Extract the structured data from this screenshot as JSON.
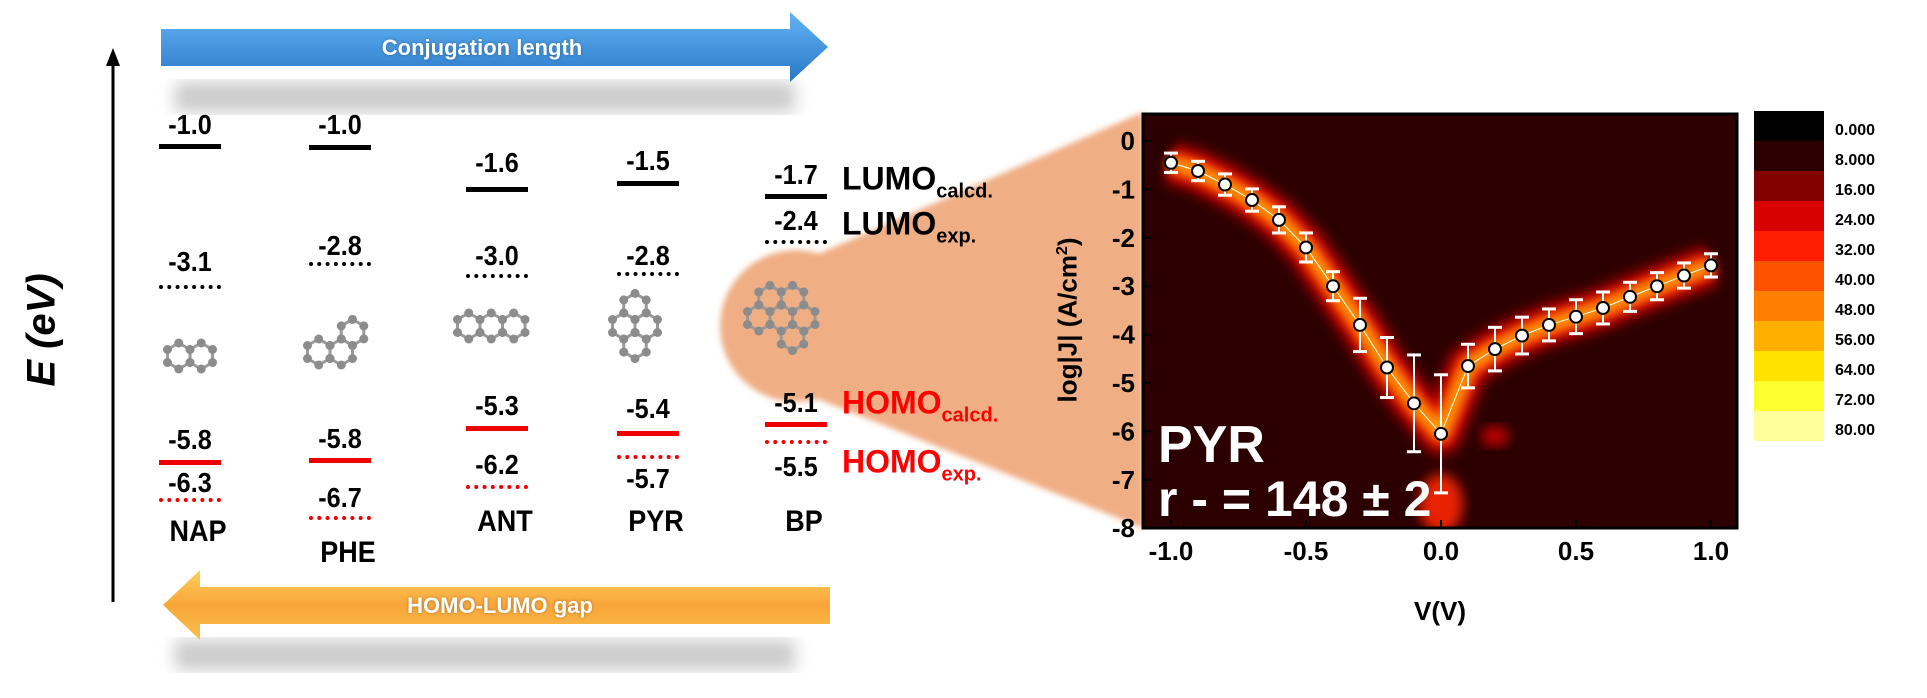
{
  "diagram": {
    "energy_axis_label": "E (eV)",
    "top_arrow_label": "Conjugation length",
    "bottom_arrow_label": "HOMO-LUMO gap",
    "top_arrow_color": "#3a8fdc",
    "bottom_arrow_color": "#f7a531",
    "highlight_color": "#f0ae84",
    "molecules": [
      {
        "name": "NAP",
        "lumo_calcd": "-1.0",
        "lumo_exp": "-3.1",
        "homo_calcd": "-5.8",
        "homo_exp": "-6.3"
      },
      {
        "name": "PHE",
        "lumo_calcd": "-1.0",
        "lumo_exp": "-2.8",
        "homo_calcd": "-5.8",
        "homo_exp": "-6.7"
      },
      {
        "name": "ANT",
        "lumo_calcd": "-1.6",
        "lumo_exp": "-3.0",
        "homo_calcd": "-5.3",
        "homo_exp": "-6.2"
      },
      {
        "name": "PYR",
        "lumo_calcd": "-1.5",
        "lumo_exp": "-2.8",
        "homo_calcd": "-5.4",
        "homo_exp": "-5.7"
      },
      {
        "name": "BP",
        "lumo_calcd": "-1.7",
        "lumo_exp": "-2.4",
        "homo_calcd": "-5.1",
        "homo_exp": "-5.5"
      }
    ],
    "legend": {
      "lumo_calcd": {
        "main": "LUMO",
        "sub": "calcd."
      },
      "lumo_exp": {
        "main": "LUMO",
        "sub": "exp."
      },
      "homo_calcd": {
        "main": "HOMO",
        "sub": "calcd."
      },
      "homo_exp": {
        "main": "HOMO",
        "sub": "exp."
      }
    }
  },
  "chart_data": {
    "type": "heatmap",
    "overlay_type": "scatter",
    "xlabel": "V(V)",
    "ylabel": "log|J| (A/cm2)",
    "xlim": [
      -1.1,
      1.1
    ],
    "ylim": [
      -8,
      0.5
    ],
    "xticks": [
      "-1.0",
      "-0.5",
      "0.0",
      "0.5",
      "1.0"
    ],
    "yticks": [
      "0",
      "-1",
      "-2",
      "-3",
      "-4",
      "-5",
      "-6",
      "-7",
      "-8"
    ],
    "annotation_name": "PYR",
    "annotation_ratio": "r - = 148 ± 2",
    "colorbar": {
      "labels": [
        "0.000",
        "8.000",
        "16.00",
        "24.00",
        "32.00",
        "40.00",
        "48.00",
        "56.00",
        "64.00",
        "72.00",
        "80.00"
      ],
      "colors": [
        "#000000",
        "#2c0000",
        "#820000",
        "#d80000",
        "#ff1c00",
        "#ff5200",
        "#ff8000",
        "#ffaf00",
        "#ffe300",
        "#ffff30",
        "#ffff9c"
      ]
    },
    "series": [
      {
        "x": [
          -1.0,
          -0.9,
          -0.8,
          -0.7,
          -0.6,
          -0.5,
          -0.4,
          -0.3,
          -0.2,
          -0.1,
          0.0,
          0.1,
          0.2,
          0.3,
          0.4,
          0.5,
          0.6,
          0.7,
          0.8,
          0.9,
          1.0
        ],
        "y": [
          -0.45,
          -0.62,
          -0.9,
          -1.22,
          -1.63,
          -2.2,
          -3.0,
          -3.8,
          -4.68,
          -5.42,
          -6.05,
          -4.65,
          -4.3,
          -4.02,
          -3.8,
          -3.63,
          -3.45,
          -3.22,
          -3.0,
          -2.78,
          -2.57
        ],
        "error": [
          0.2,
          0.2,
          0.22,
          0.23,
          0.27,
          0.3,
          0.3,
          0.55,
          0.62,
          1.0,
          1.22,
          0.45,
          0.45,
          0.38,
          0.33,
          0.35,
          0.33,
          0.3,
          0.28,
          0.26,
          0.24
        ]
      }
    ]
  }
}
